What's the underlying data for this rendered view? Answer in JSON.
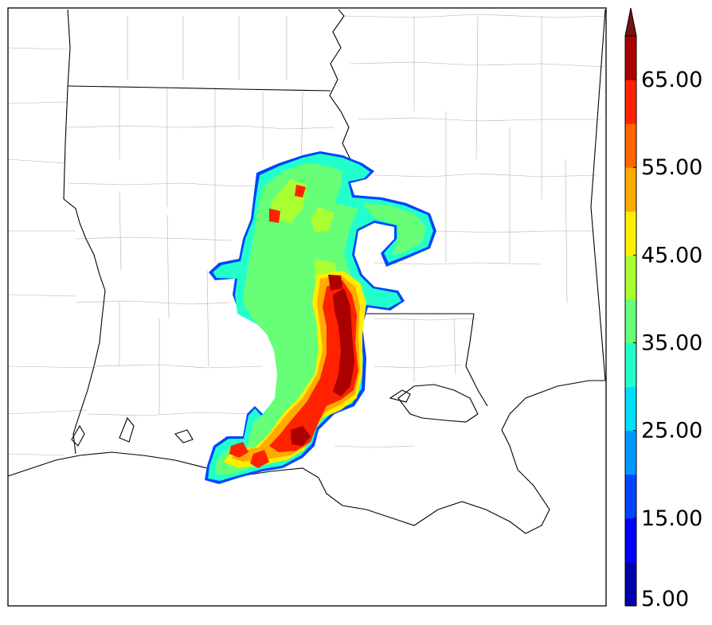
{
  "colorbar": {
    "min": 5,
    "max": 70,
    "step": 5,
    "extend": "max",
    "tick_labels": [
      "5.00",
      "15.00",
      "25.00",
      "35.00",
      "45.00",
      "55.00",
      "65.00"
    ],
    "colors": [
      "#0000aa",
      "#0000ff",
      "#0044ff",
      "#0099ff",
      "#00ddff",
      "#22ffcc",
      "#66ff77",
      "#aaff33",
      "#ffee00",
      "#ffaa00",
      "#ff6600",
      "#ff2200",
      "#aa0000",
      "#771111"
    ]
  },
  "map": {
    "background": "#ffffff",
    "county_line_color": "#aaaaaa",
    "state_line_color": "#000000",
    "coast_color": "#000000"
  }
}
